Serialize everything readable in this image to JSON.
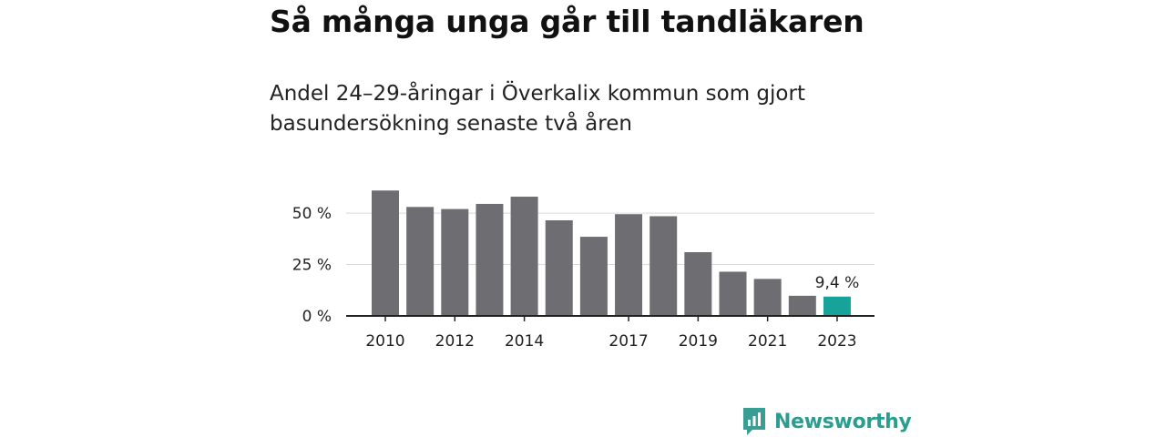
{
  "title": "Så många unga går till tandläkaren",
  "subtitle": "Andel 24–29-åringar i Överkalix kommun som gjort basundersökning senaste två åren",
  "brand": {
    "name": "Newsworthy"
  },
  "colors": {
    "bar": "#6e6d72",
    "highlight": "#17a39a",
    "grid": "#d9d9d9",
    "axis": "#222222",
    "brand": "#2a9d8f"
  },
  "chart_data": {
    "type": "bar",
    "categories": [
      "2010",
      "2011",
      "2012",
      "2013",
      "2014",
      "2015",
      "2016",
      "2017",
      "2018",
      "2019",
      "2020",
      "2021",
      "2022",
      "2023"
    ],
    "x_tick_labels": [
      "2010",
      "",
      "2012",
      "",
      "2014",
      "",
      "",
      "2017",
      "",
      "2019",
      "",
      "2021",
      "",
      "2023"
    ],
    "values": [
      61,
      53,
      52,
      54.5,
      58,
      46.5,
      38.5,
      49.5,
      48.5,
      31,
      21.5,
      18,
      9.8,
      9.4
    ],
    "highlight_index": 13,
    "data_labels": [
      {
        "index": 13,
        "text": "9,4 %"
      }
    ],
    "y_ticks": [
      {
        "value": 0,
        "label": "0 %"
      },
      {
        "value": 25,
        "label": "25 %"
      },
      {
        "value": 50,
        "label": "50 %"
      }
    ],
    "ylim": [
      0,
      62
    ],
    "grid": true,
    "legend": "none",
    "xlabel": "",
    "ylabel": ""
  }
}
